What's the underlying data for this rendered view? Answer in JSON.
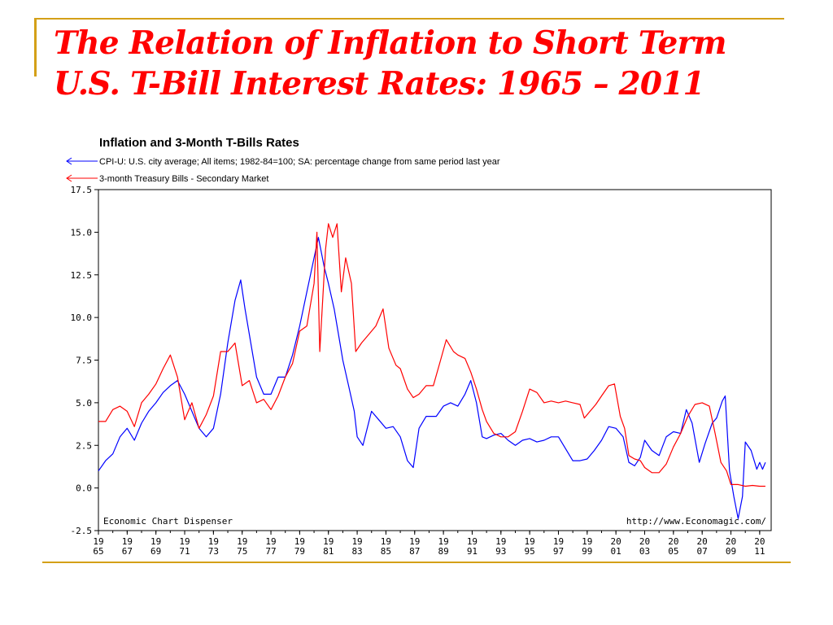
{
  "slide": {
    "title_line1": "The Relation of Inflation to Short Term",
    "title_line2": "U.S. T-Bill Interest Rates: 1965 – 2011"
  },
  "chart_data": {
    "type": "line",
    "title": "Inflation and 3-Month T-Bills Rates",
    "xlabel": "",
    "ylabel": "",
    "xlim": [
      1965,
      2011.8
    ],
    "ylim": [
      -2.5,
      17.5
    ],
    "yticks": [
      "17.5",
      "15.0",
      "12.5",
      "10.0",
      "7.5",
      "5.0",
      "2.5",
      "0.0",
      "-2.5"
    ],
    "ytick_values": [
      17.5,
      15,
      12.5,
      10,
      7.5,
      5,
      2.5,
      0,
      -2.5
    ],
    "xticks": [
      {
        "year": 1965,
        "top": "19",
        "bottom": "65"
      },
      {
        "year": 1967,
        "top": "19",
        "bottom": "67"
      },
      {
        "year": 1969,
        "top": "19",
        "bottom": "69"
      },
      {
        "year": 1971,
        "top": "19",
        "bottom": "71"
      },
      {
        "year": 1973,
        "top": "19",
        "bottom": "73"
      },
      {
        "year": 1975,
        "top": "19",
        "bottom": "75"
      },
      {
        "year": 1977,
        "top": "19",
        "bottom": "77"
      },
      {
        "year": 1979,
        "top": "19",
        "bottom": "79"
      },
      {
        "year": 1981,
        "top": "19",
        "bottom": "81"
      },
      {
        "year": 1983,
        "top": "19",
        "bottom": "83"
      },
      {
        "year": 1985,
        "top": "19",
        "bottom": "85"
      },
      {
        "year": 1987,
        "top": "19",
        "bottom": "87"
      },
      {
        "year": 1989,
        "top": "19",
        "bottom": "89"
      },
      {
        "year": 1991,
        "top": "19",
        "bottom": "91"
      },
      {
        "year": 1993,
        "top": "19",
        "bottom": "93"
      },
      {
        "year": 1995,
        "top": "19",
        "bottom": "95"
      },
      {
        "year": 1997,
        "top": "19",
        "bottom": "97"
      },
      {
        "year": 1999,
        "top": "19",
        "bottom": "99"
      },
      {
        "year": 2001,
        "top": "20",
        "bottom": "01"
      },
      {
        "year": 2003,
        "top": "20",
        "bottom": "03"
      },
      {
        "year": 2005,
        "top": "20",
        "bottom": "05"
      },
      {
        "year": 2007,
        "top": "20",
        "bottom": "07"
      },
      {
        "year": 2009,
        "top": "20",
        "bottom": "09"
      },
      {
        "year": 2011,
        "top": "20",
        "bottom": "11"
      }
    ],
    "grid": false,
    "legend_position": "top-left",
    "annotations": {
      "source_left": "Economic Chart Dispenser",
      "source_right": "http://www.Economagic.com/"
    },
    "series": [
      {
        "name": "CPI-U: U.S. city average; All items; 1982-84=100; SA: percentage change from same period last year",
        "color": "#0000ff",
        "points": [
          [
            1965.0,
            1.0
          ],
          [
            1965.5,
            1.6
          ],
          [
            1966.0,
            2.0
          ],
          [
            1966.5,
            3.0
          ],
          [
            1967.0,
            3.5
          ],
          [
            1967.5,
            2.8
          ],
          [
            1968.0,
            3.8
          ],
          [
            1968.5,
            4.5
          ],
          [
            1969.0,
            5.0
          ],
          [
            1969.5,
            5.6
          ],
          [
            1970.0,
            6.0
          ],
          [
            1970.5,
            6.3
          ],
          [
            1971.0,
            5.5
          ],
          [
            1971.5,
            4.5
          ],
          [
            1972.0,
            3.5
          ],
          [
            1972.5,
            3.0
          ],
          [
            1973.0,
            3.5
          ],
          [
            1973.5,
            5.5
          ],
          [
            1974.0,
            8.5
          ],
          [
            1974.5,
            11.0
          ],
          [
            1974.9,
            12.2
          ],
          [
            1975.2,
            10.5
          ],
          [
            1975.6,
            8.5
          ],
          [
            1976.0,
            6.5
          ],
          [
            1976.5,
            5.5
          ],
          [
            1977.0,
            5.5
          ],
          [
            1977.5,
            6.5
          ],
          [
            1978.0,
            6.5
          ],
          [
            1978.5,
            7.8
          ],
          [
            1979.0,
            9.5
          ],
          [
            1979.5,
            11.5
          ],
          [
            1980.0,
            13.5
          ],
          [
            1980.3,
            14.7
          ],
          [
            1980.7,
            13.0
          ],
          [
            1981.0,
            12.0
          ],
          [
            1981.4,
            10.5
          ],
          [
            1981.8,
            8.5
          ],
          [
            1982.0,
            7.5
          ],
          [
            1982.4,
            6.0
          ],
          [
            1982.8,
            4.5
          ],
          [
            1983.0,
            3.0
          ],
          [
            1983.4,
            2.5
          ],
          [
            1984.0,
            4.5
          ],
          [
            1984.5,
            4.0
          ],
          [
            1985.0,
            3.5
          ],
          [
            1985.5,
            3.6
          ],
          [
            1986.0,
            3.0
          ],
          [
            1986.5,
            1.6
          ],
          [
            1986.9,
            1.2
          ],
          [
            1987.3,
            3.5
          ],
          [
            1987.8,
            4.2
          ],
          [
            1988.5,
            4.2
          ],
          [
            1989.0,
            4.8
          ],
          [
            1989.5,
            5.0
          ],
          [
            1990.0,
            4.8
          ],
          [
            1990.5,
            5.5
          ],
          [
            1990.9,
            6.3
          ],
          [
            1991.3,
            5.0
          ],
          [
            1991.7,
            3.0
          ],
          [
            1992.0,
            2.9
          ],
          [
            1992.5,
            3.1
          ],
          [
            1993.0,
            3.2
          ],
          [
            1993.5,
            2.8
          ],
          [
            1994.0,
            2.5
          ],
          [
            1994.5,
            2.8
          ],
          [
            1995.0,
            2.9
          ],
          [
            1995.5,
            2.7
          ],
          [
            1996.0,
            2.8
          ],
          [
            1996.5,
            3.0
          ],
          [
            1997.0,
            3.0
          ],
          [
            1997.5,
            2.3
          ],
          [
            1998.0,
            1.6
          ],
          [
            1998.5,
            1.6
          ],
          [
            1999.0,
            1.7
          ],
          [
            1999.5,
            2.2
          ],
          [
            2000.0,
            2.8
          ],
          [
            2000.5,
            3.6
          ],
          [
            2001.0,
            3.5
          ],
          [
            2001.5,
            3.0
          ],
          [
            2001.9,
            1.5
          ],
          [
            2002.3,
            1.3
          ],
          [
            2002.7,
            1.8
          ],
          [
            2003.0,
            2.8
          ],
          [
            2003.5,
            2.2
          ],
          [
            2004.0,
            1.9
          ],
          [
            2004.5,
            3.0
          ],
          [
            2005.0,
            3.3
          ],
          [
            2005.5,
            3.2
          ],
          [
            2005.9,
            4.6
          ],
          [
            2006.3,
            3.8
          ],
          [
            2006.8,
            1.5
          ],
          [
            2007.2,
            2.6
          ],
          [
            2007.7,
            3.8
          ],
          [
            2008.0,
            4.1
          ],
          [
            2008.4,
            5.1
          ],
          [
            2008.6,
            5.4
          ],
          [
            2008.9,
            1.0
          ],
          [
            2009.2,
            -0.5
          ],
          [
            2009.5,
            -1.8
          ],
          [
            2009.8,
            -0.5
          ],
          [
            2010.0,
            2.7
          ],
          [
            2010.4,
            2.2
          ],
          [
            2010.8,
            1.1
          ],
          [
            2011.0,
            1.5
          ],
          [
            2011.2,
            1.1
          ],
          [
            2011.4,
            1.5
          ]
        ]
      },
      {
        "name": "3-month Treasury Bills - Secondary Market",
        "color": "#ff0000",
        "points": [
          [
            1965.0,
            3.9
          ],
          [
            1965.5,
            3.9
          ],
          [
            1966.0,
            4.6
          ],
          [
            1966.5,
            4.8
          ],
          [
            1967.0,
            4.5
          ],
          [
            1967.5,
            3.6
          ],
          [
            1968.0,
            5.0
          ],
          [
            1968.5,
            5.5
          ],
          [
            1969.0,
            6.1
          ],
          [
            1969.5,
            7.0
          ],
          [
            1970.0,
            7.8
          ],
          [
            1970.5,
            6.5
          ],
          [
            1971.0,
            4.0
          ],
          [
            1971.5,
            5.0
          ],
          [
            1972.0,
            3.5
          ],
          [
            1972.5,
            4.3
          ],
          [
            1973.0,
            5.4
          ],
          [
            1973.5,
            8.0
          ],
          [
            1974.0,
            8.0
          ],
          [
            1974.5,
            8.5
          ],
          [
            1975.0,
            6.0
          ],
          [
            1975.5,
            6.3
          ],
          [
            1976.0,
            5.0
          ],
          [
            1976.5,
            5.2
          ],
          [
            1977.0,
            4.6
          ],
          [
            1977.5,
            5.4
          ],
          [
            1978.0,
            6.5
          ],
          [
            1978.5,
            7.3
          ],
          [
            1979.0,
            9.2
          ],
          [
            1979.5,
            9.5
          ],
          [
            1980.0,
            12.0
          ],
          [
            1980.2,
            15.0
          ],
          [
            1980.4,
            8.0
          ],
          [
            1980.8,
            14.0
          ],
          [
            1981.0,
            15.5
          ],
          [
            1981.3,
            14.7
          ],
          [
            1981.6,
            15.5
          ],
          [
            1981.9,
            11.5
          ],
          [
            1982.2,
            13.5
          ],
          [
            1982.6,
            12.0
          ],
          [
            1982.9,
            8.0
          ],
          [
            1983.3,
            8.5
          ],
          [
            1983.8,
            9.0
          ],
          [
            1984.3,
            9.5
          ],
          [
            1984.8,
            10.5
          ],
          [
            1985.2,
            8.2
          ],
          [
            1985.7,
            7.2
          ],
          [
            1986.0,
            7.0
          ],
          [
            1986.5,
            5.8
          ],
          [
            1986.9,
            5.3
          ],
          [
            1987.3,
            5.5
          ],
          [
            1987.8,
            6.0
          ],
          [
            1988.3,
            6.0
          ],
          [
            1988.8,
            7.5
          ],
          [
            1989.2,
            8.7
          ],
          [
            1989.7,
            8.0
          ],
          [
            1990.0,
            7.8
          ],
          [
            1990.5,
            7.6
          ],
          [
            1990.9,
            6.8
          ],
          [
            1991.3,
            5.8
          ],
          [
            1991.7,
            4.6
          ],
          [
            1992.0,
            3.9
          ],
          [
            1992.5,
            3.2
          ],
          [
            1993.0,
            3.0
          ],
          [
            1993.5,
            3.0
          ],
          [
            1994.0,
            3.3
          ],
          [
            1994.5,
            4.5
          ],
          [
            1995.0,
            5.8
          ],
          [
            1995.5,
            5.6
          ],
          [
            1996.0,
            5.0
          ],
          [
            1996.5,
            5.1
          ],
          [
            1997.0,
            5.0
          ],
          [
            1997.5,
            5.1
          ],
          [
            1998.0,
            5.0
          ],
          [
            1998.5,
            4.9
          ],
          [
            1998.8,
            4.1
          ],
          [
            1999.2,
            4.5
          ],
          [
            1999.6,
            4.9
          ],
          [
            2000.0,
            5.4
          ],
          [
            2000.5,
            6.0
          ],
          [
            2000.9,
            6.1
          ],
          [
            2001.3,
            4.2
          ],
          [
            2001.6,
            3.5
          ],
          [
            2001.9,
            1.9
          ],
          [
            2002.3,
            1.7
          ],
          [
            2002.7,
            1.6
          ],
          [
            2003.0,
            1.2
          ],
          [
            2003.5,
            0.9
          ],
          [
            2004.0,
            0.9
          ],
          [
            2004.5,
            1.4
          ],
          [
            2005.0,
            2.4
          ],
          [
            2005.5,
            3.2
          ],
          [
            2006.0,
            4.2
          ],
          [
            2006.5,
            4.9
          ],
          [
            2007.0,
            5.0
          ],
          [
            2007.5,
            4.8
          ],
          [
            2007.9,
            3.2
          ],
          [
            2008.3,
            1.5
          ],
          [
            2008.7,
            1.0
          ],
          [
            2009.0,
            0.2
          ],
          [
            2009.5,
            0.2
          ],
          [
            2010.0,
            0.1
          ],
          [
            2010.5,
            0.15
          ],
          [
            2011.0,
            0.1
          ],
          [
            2011.4,
            0.1
          ]
        ]
      }
    ]
  }
}
